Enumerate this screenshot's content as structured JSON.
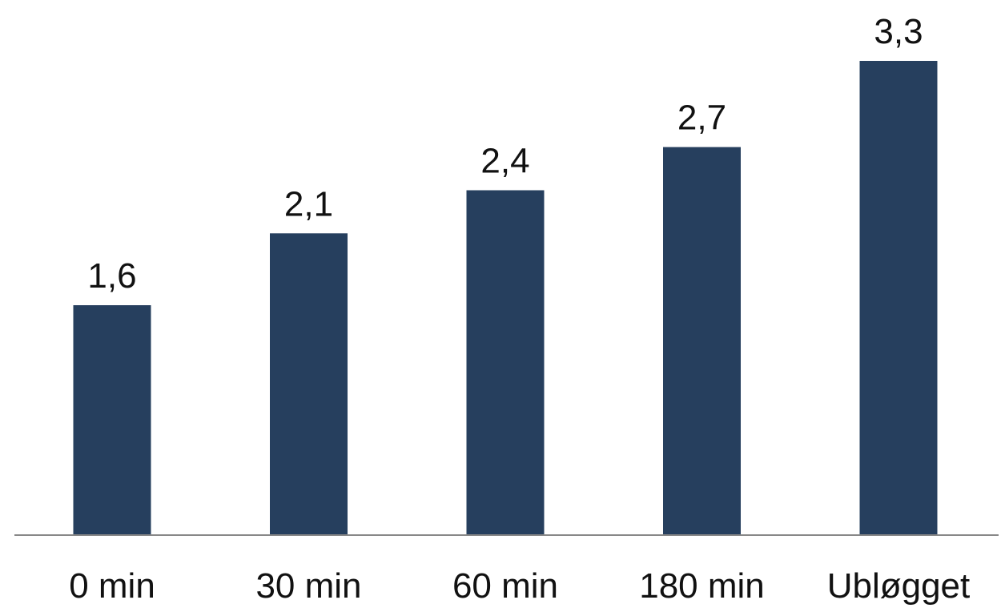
{
  "chart_data": {
    "type": "bar",
    "categories": [
      "0 min",
      "30 min",
      "60 min",
      "180 min",
      "Ubløgget"
    ],
    "values": [
      1.6,
      2.1,
      2.4,
      2.7,
      3.3
    ],
    "value_labels": [
      "1,6",
      "2,1",
      "2,4",
      "2,7",
      "3,3"
    ],
    "ylim": [
      0,
      3.3
    ],
    "grid": false,
    "legend": "none",
    "colors": {
      "bar": "#263F5E",
      "axis": "#888888",
      "text": "#111111"
    }
  }
}
